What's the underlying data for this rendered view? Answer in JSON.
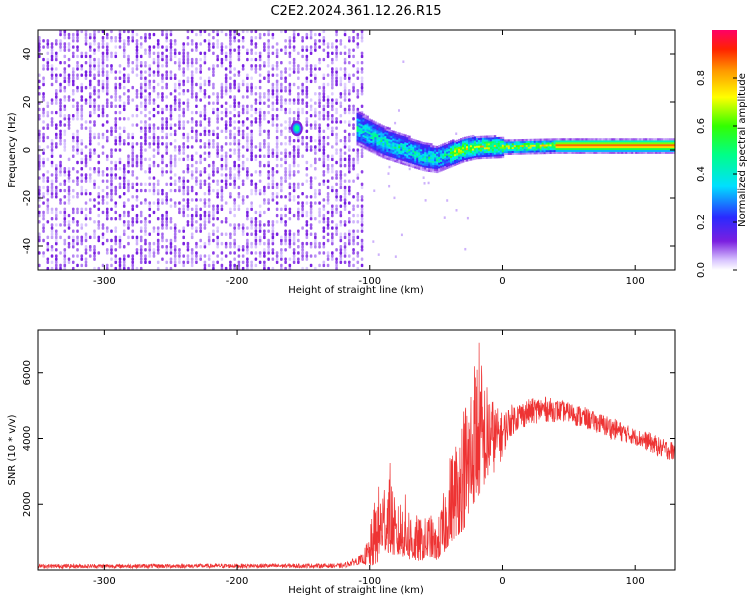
{
  "title": "C2E2.2024.361.12.26.R15",
  "chart_data": [
    {
      "type": "heatmap",
      "xlabel": "Height of straight line (km)",
      "ylabel": "Frequency (Hz)",
      "xlim": [
        -350,
        130
      ],
      "ylim": [
        -50,
        50
      ],
      "xticks": [
        -300,
        -200,
        -100,
        0,
        100
      ],
      "yticks": [
        -40,
        -20,
        0,
        20,
        40
      ],
      "colorbar": {
        "label": "Normalized spectral amplitude",
        "range": [
          0.0,
          1.0
        ],
        "ticks": [
          "0.0",
          "0.2",
          "0.4",
          "0.6",
          "0.8"
        ]
      },
      "features": {
        "noise_region_x": [
          -350,
          -105
        ],
        "main_signal_path": [
          {
            "x": -110,
            "y": 9
          },
          {
            "x": -100,
            "y": 6
          },
          {
            "x": -90,
            "y": 3
          },
          {
            "x": -80,
            "y": 1
          },
          {
            "x": -70,
            "y": -1
          },
          {
            "x": -60,
            "y": -3
          },
          {
            "x": -50,
            "y": -4
          },
          {
            "x": -40,
            "y": -2
          },
          {
            "x": -30,
            "y": 0
          },
          {
            "x": -20,
            "y": 1
          },
          {
            "x": 0,
            "y": 1
          },
          {
            "x": 40,
            "y": 1.5
          },
          {
            "x": 130,
            "y": 1.5
          }
        ],
        "isolated_blob": {
          "x": -155,
          "y": 9
        }
      },
      "grid": false
    },
    {
      "type": "line",
      "xlabel": "Height of straight line (km)",
      "ylabel": "SNR (10 * v/v)",
      "xlim": [
        -350,
        130
      ],
      "ylim": [
        0,
        7300
      ],
      "xticks": [
        -300,
        -200,
        -100,
        0,
        100
      ],
      "yticks": [
        2000,
        4000,
        6000
      ],
      "color": "#ee3333",
      "grid": false,
      "envelope": {
        "x": [
          -350,
          -120,
          -105,
          -100,
          -95,
          -90,
          -85,
          -80,
          -75,
          -70,
          -65,
          -60,
          -55,
          -50,
          -45,
          -40,
          -35,
          -30,
          -25,
          -22,
          -18,
          -15,
          -10,
          -5,
          0,
          5,
          10,
          20,
          30,
          40,
          50,
          60,
          70,
          80,
          90,
          100,
          110,
          120,
          130
        ],
        "low": [
          50,
          60,
          200,
          100,
          150,
          600,
          500,
          400,
          400,
          300,
          250,
          300,
          400,
          300,
          400,
          800,
          1000,
          1200,
          1500,
          2000,
          2200,
          2500,
          2800,
          3000,
          3400,
          4000,
          4200,
          4400,
          4500,
          4500,
          4500,
          4300,
          4200,
          4000,
          3900,
          3800,
          3600,
          3400,
          3300
        ],
        "high": [
          180,
          200,
          500,
          1200,
          2500,
          2800,
          3400,
          1800,
          2500,
          2000,
          1700,
          1500,
          1800,
          1300,
          2200,
          3500,
          4200,
          5000,
          6000,
          6500,
          7300,
          6200,
          5500,
          5000,
          4800,
          5000,
          5100,
          5200,
          5300,
          5200,
          5100,
          5000,
          4800,
          4700,
          4500,
          4300,
          4200,
          4000,
          3900
        ]
      }
    }
  ]
}
